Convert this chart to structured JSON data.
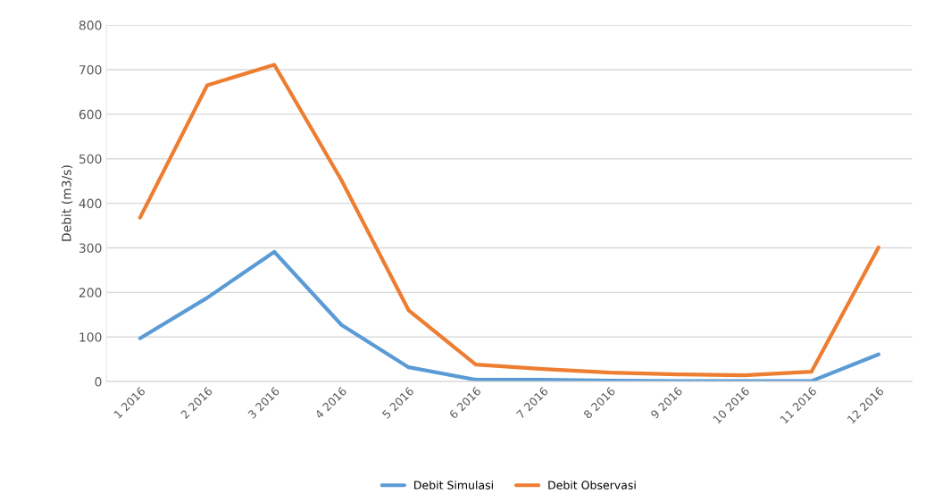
{
  "chart_data": {
    "type": "line",
    "ylabel": "Debit (m3/s)",
    "categories": [
      "1 2016",
      "2 2016",
      "3 2016",
      "4 2016",
      "5 2016",
      "6 2016",
      "7 2016",
      "8 2016",
      "9 2016",
      "10 2016",
      "11 2016",
      "12 2016"
    ],
    "series": [
      {
        "name": "Debit Simulasi",
        "color": "#5b9bd5",
        "values": [
          97,
          188,
          291,
          127,
          32,
          4,
          4,
          2,
          1,
          1,
          1,
          61
        ]
      },
      {
        "name": "Debit Observasi",
        "color": "#ed7d31",
        "values": [
          368,
          665,
          711,
          452,
          160,
          38,
          28,
          20,
          16,
          14,
          22,
          301
        ]
      }
    ],
    "ylim": [
      0,
      800
    ],
    "yticks": [
      0,
      100,
      200,
      300,
      400,
      500,
      600,
      700,
      800
    ],
    "grid": "y",
    "legend": "bottom",
    "marker": "none",
    "line_style": "solid"
  }
}
